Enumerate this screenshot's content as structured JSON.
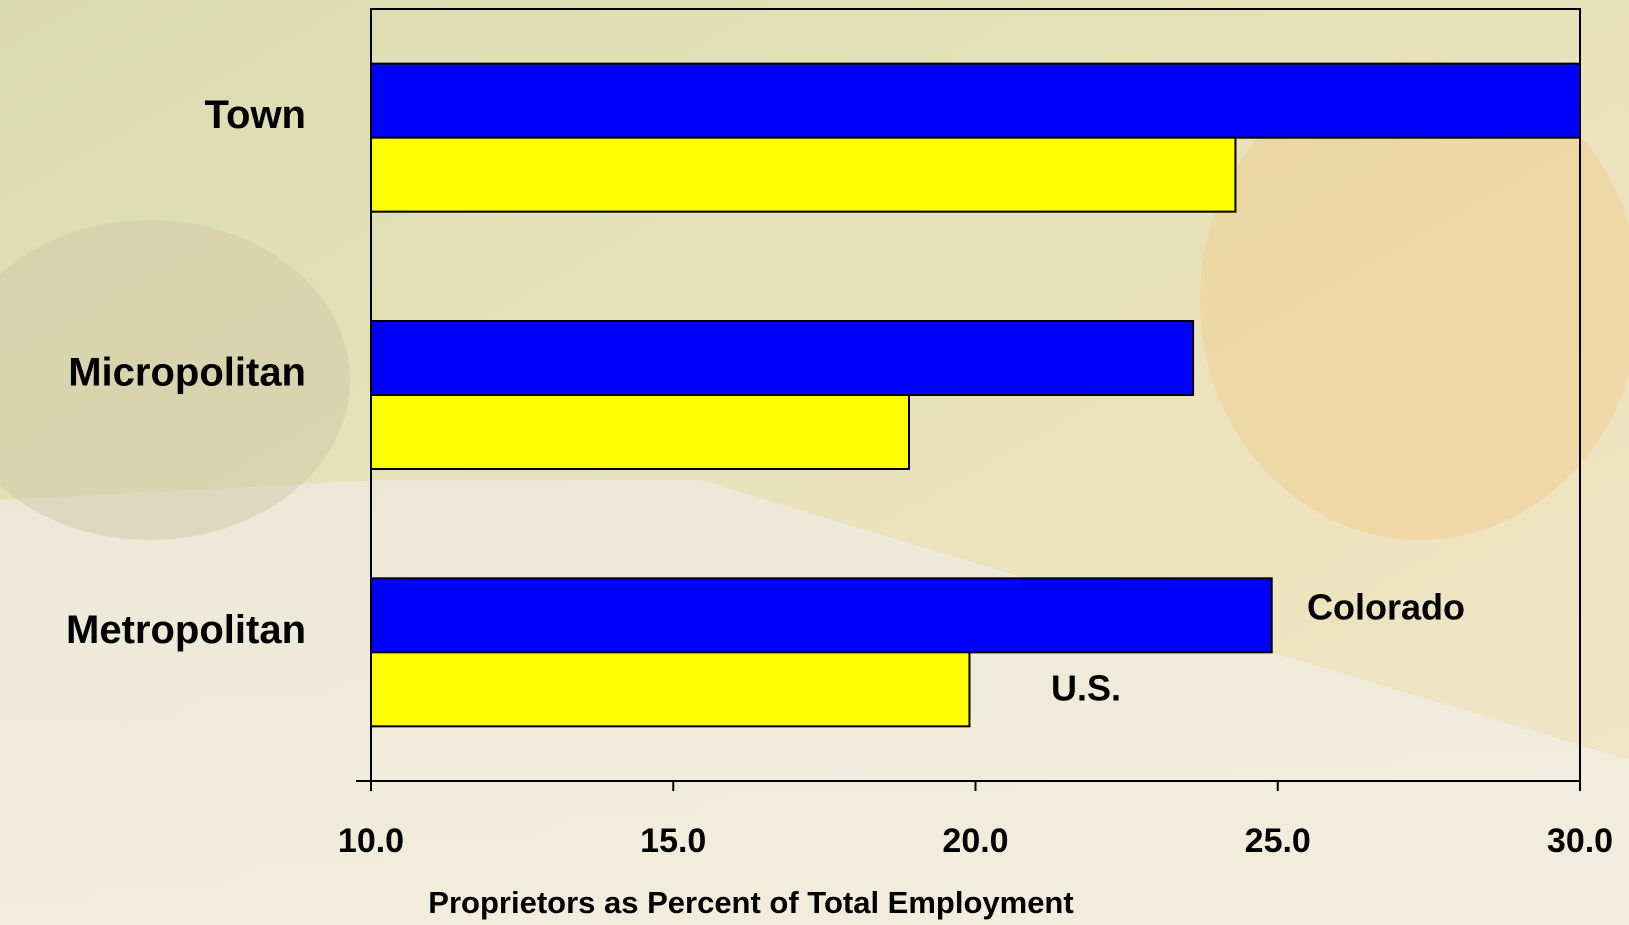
{
  "chart_data": {
    "type": "barh",
    "categories": [
      "Town",
      "Micropolitan",
      "Metropolitan"
    ],
    "series": [
      {
        "name": "Colorado",
        "color": "#0000ff",
        "values": [
          30.0,
          23.6,
          24.9
        ]
      },
      {
        "name": "U.S.",
        "color": "#ffff00",
        "values": [
          24.3,
          18.9,
          19.9
        ]
      }
    ],
    "xlim": [
      10,
      30
    ],
    "xticks": [
      {
        "value": 10,
        "label": "10.0"
      },
      {
        "value": 15,
        "label": "15.0"
      },
      {
        "value": 20,
        "label": "20.0"
      },
      {
        "value": 25,
        "label": "25.0"
      },
      {
        "value": 30,
        "label": "30.0"
      }
    ],
    "x_label": "Proprietors as Percent of Total Employment"
  }
}
